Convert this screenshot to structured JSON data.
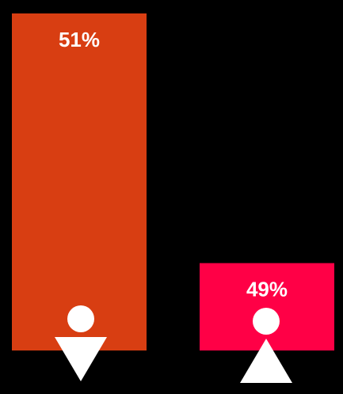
{
  "chart_data": {
    "type": "bar",
    "categories": [
      "",
      ""
    ],
    "values": [
      51,
      49
    ],
    "labels": [
      "51%",
      "49%"
    ],
    "colors": [
      "#d83e12",
      "#ff0046"
    ],
    "icons": [
      "person-down-triangle-icon",
      "person-up-triangle-icon"
    ],
    "title": "",
    "xlabel": "",
    "ylabel": "",
    "grid": false,
    "legend": "none"
  }
}
